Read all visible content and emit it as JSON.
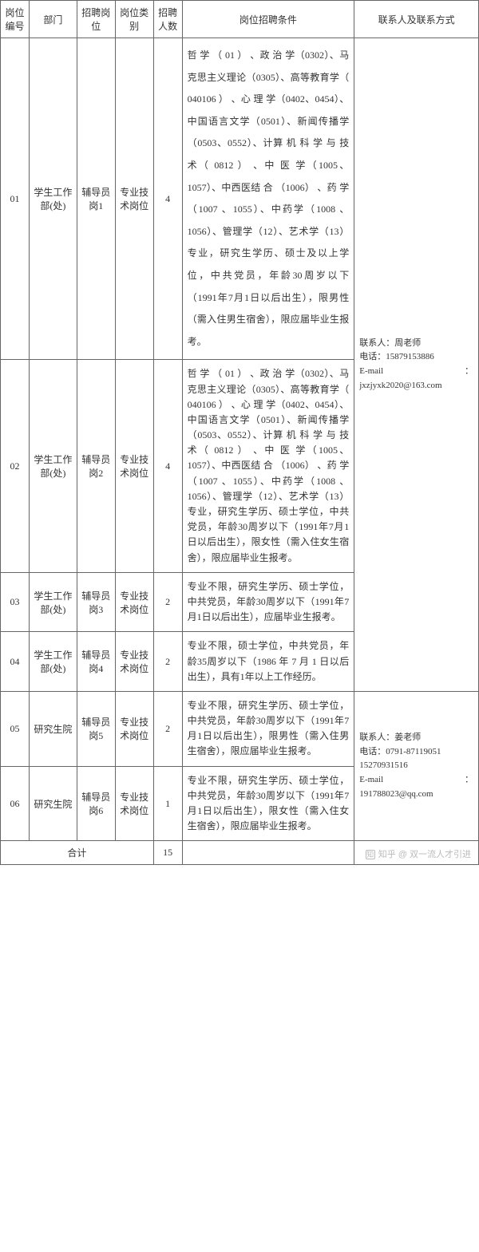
{
  "table": {
    "headers": {
      "id": "岗位编号",
      "dept": "部门",
      "position": "招聘岗位",
      "category": "岗位类别",
      "count": "招聘人数",
      "conditions": "岗位招聘条件",
      "contact": "联系人及联系方式"
    },
    "rows": [
      {
        "id": "01",
        "dept": "学生工作部(处)",
        "position": "辅导员岗1",
        "category": "专业技术岗位",
        "count": "4",
        "conditions": "哲 学 （ 01 ） 、政 治 学（0302）、马克思主义理论（0305）、高等教育学（ 040106 ） 、心 理 学（0402、0454）、中国语言文学（0501）、新闻传播学（0503、0552）、计算 机 科 学 与 技 术（ 0812 ） 、中 医 学（1005、1057）、中西医结 合 （1006） 、药 学（1007 、1055）、中药学（1008 、1056）、管理学（12）、艺术学（13）专业，研究生学历、硕士及以上学位，中共党员，年龄30周岁以下（1991年7月1日以后出生），限男性（需入住男生宿舍），限应届毕业生报考。"
      },
      {
        "id": "02",
        "dept": "学生工作部(处)",
        "position": "辅导员岗2",
        "category": "专业技术岗位",
        "count": "4",
        "conditions": "哲 学 （ 01 ） 、政 治 学（0302）、马克思主义理论（0305）、高等教育学（ 040106 ） 、心 理 学（0402、0454）、中国语言文学（0501）、新闻传播学（0503、0552）、计算 机 科 学 与 技 术（ 0812 ） 、中 医 学（1005、1057）、中西医结 合 （1006） 、药 学（1007 、1055）、中药学（1008 、1056）、管理学（12）、艺术学（13）专业，研究生学历、硕士学位，中共党员，年龄30周岁以下（1991年7月1日以后出生），限女性（需入住女生宿舍），限应届毕业生报考。"
      },
      {
        "id": "03",
        "dept": "学生工作部(处)",
        "position": "辅导员岗3",
        "category": "专业技术岗位",
        "count": "2",
        "conditions": "专业不限，研究生学历、硕士学位，中共党员，年龄30周岁以下（1991年7月1日以后出生），应届毕业生报考。"
      },
      {
        "id": "04",
        "dept": "学生工作部(处)",
        "position": "辅导员岗4",
        "category": "专业技术岗位",
        "count": "2",
        "conditions": "专业不限，硕士学位，中共党员，年龄35周岁以下（1986 年 7 月 1 日以后出生），具有1年以上工作经历。"
      },
      {
        "id": "05",
        "dept": "研究生院",
        "position": "辅导员岗5",
        "category": "专业技术岗位",
        "count": "2",
        "conditions": "专业不限，研究生学历、硕士学位，中共党员，年龄30周岁以下（1991年7月1日以后出生），限男性（需入住男生宿舍），限应届毕业生报考。"
      },
      {
        "id": "06",
        "dept": "研究生院",
        "position": "辅导员岗6",
        "category": "专业技术岗位",
        "count": "1",
        "conditions": "专业不限，研究生学历、硕士学位，中共党员，年龄30周岁以下（1991年7月1日以后出生），限女性（需入住女生宿舍），限应届毕业生报考。"
      }
    ],
    "contacts": [
      {
        "person_label": "联系人：",
        "person": "周老师",
        "phone_label": "电话：",
        "phone": "15879153886",
        "email_label": "E-mail",
        "email_colon": "：",
        "email": "jxzjyxk2020@163.com"
      },
      {
        "person_label": "联系人：",
        "person": "姜老师",
        "phone_label": "电话：",
        "phone1": "0791-87119051",
        "phone2": "15270931516",
        "email_label": "E-mail",
        "email_colon": "：",
        "email": "191788023@qq.com"
      }
    ],
    "total_label": "合计",
    "total_count": "15"
  },
  "watermark": {
    "icon": "知",
    "text": "知乎 @ 双一流人才引进"
  },
  "styles": {
    "border_color": "#666666",
    "text_color": "#333333",
    "background": "#ffffff",
    "watermark_color": "#bbbbbb",
    "font_size_body": 12,
    "font_size_contact": 11
  }
}
